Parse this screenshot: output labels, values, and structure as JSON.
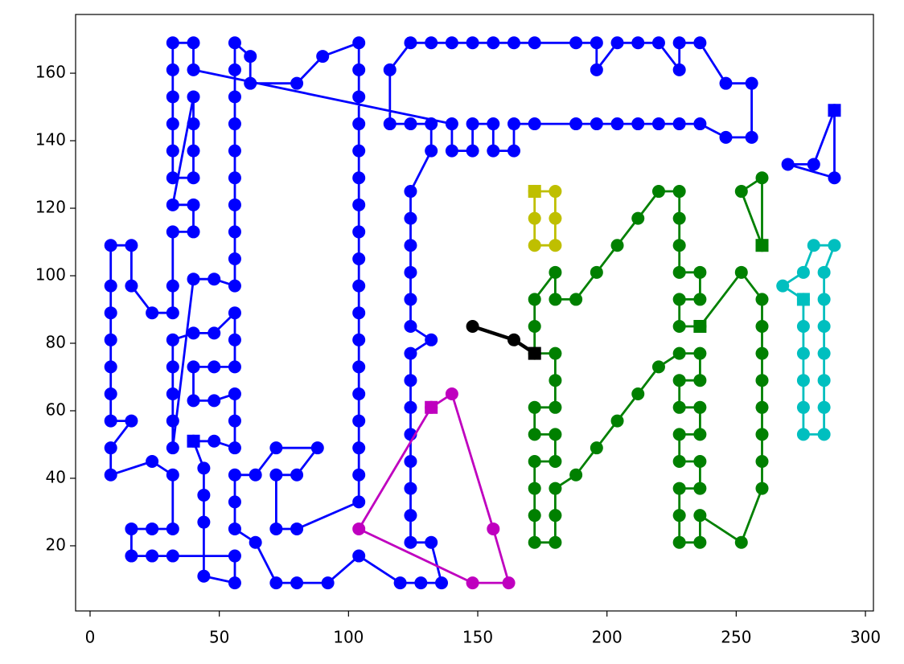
{
  "chart_data": {
    "type": "line",
    "xlim": [
      -5.6,
      303.1
    ],
    "ylim": [
      0.7,
      177.4
    ],
    "xticks": [
      0,
      50,
      100,
      150,
      200,
      250,
      300
    ],
    "yticks": [
      20,
      40,
      60,
      80,
      100,
      120,
      140,
      160
    ],
    "series": [
      {
        "color": "#0000ff",
        "x": [
          40,
          48,
          56,
          56,
          56,
          48,
          40,
          40,
          48,
          56,
          56,
          56,
          48,
          40,
          32,
          32,
          32,
          32,
          32,
          40,
          48,
          56,
          56,
          56,
          56,
          56,
          56,
          56,
          56,
          56,
          56,
          62,
          62,
          80,
          90,
          104,
          104,
          104,
          104,
          104,
          104,
          104,
          104,
          104,
          104,
          104,
          104,
          104,
          104,
          104,
          104,
          104,
          104,
          80,
          72,
          72,
          80,
          88,
          72,
          64,
          56,
          56,
          56,
          64,
          72,
          80,
          92,
          104,
          120,
          128,
          136,
          132,
          124,
          124,
          124,
          124,
          124,
          124,
          124,
          124,
          132,
          124,
          124,
          124,
          124,
          124,
          124,
          132,
          132,
          124,
          116,
          116,
          124,
          132,
          140,
          148,
          156,
          164,
          172,
          188,
          196,
          196,
          204,
          212,
          220,
          228,
          228,
          236,
          246,
          256,
          256,
          246,
          236,
          228,
          220,
          212,
          204,
          196,
          188,
          172,
          164,
          164,
          156,
          156,
          148,
          148,
          140,
          140,
          40,
          40,
          32,
          32,
          32,
          32,
          32,
          32,
          40,
          40,
          40,
          40,
          32,
          40,
          40,
          32,
          32,
          32,
          24,
          16,
          16,
          8,
          8,
          8,
          8,
          8,
          8,
          8,
          16,
          8,
          8,
          24,
          32,
          32,
          24,
          16,
          16,
          24,
          32,
          56,
          56,
          44,
          44,
          44,
          44,
          40
        ],
        "y": [
          51,
          51,
          49,
          57,
          65,
          63,
          63,
          73,
          73,
          73,
          81,
          89,
          83,
          83,
          81,
          73,
          65,
          57,
          49,
          99,
          99,
          97,
          105,
          113,
          121,
          129,
          137,
          145,
          153,
          161,
          169,
          165,
          157,
          157,
          165,
          169,
          161,
          153,
          145,
          137,
          129,
          121,
          113,
          105,
          97,
          89,
          81,
          73,
          65,
          57,
          49,
          41,
          33,
          25,
          25,
          41,
          41,
          49,
          49,
          41,
          41,
          33,
          25,
          21,
          9,
          9,
          9,
          17,
          9,
          9,
          9,
          21,
          21,
          29,
          37,
          45,
          53,
          61,
          69,
          77,
          81,
          85,
          93,
          101,
          109,
          117,
          125,
          137,
          145,
          145,
          145,
          161,
          169,
          169,
          169,
          169,
          169,
          169,
          169,
          169,
          169,
          161,
          169,
          169,
          169,
          161,
          169,
          169,
          157,
          157,
          141,
          141,
          145,
          145,
          145,
          145,
          145,
          145,
          145,
          145,
          145,
          137,
          137,
          145,
          145,
          137,
          137,
          145,
          161,
          169,
          169,
          161,
          153,
          145,
          137,
          129,
          129,
          137,
          145,
          153,
          121,
          121,
          113,
          113,
          97,
          89,
          89,
          97,
          109,
          109,
          97,
          89,
          81,
          73,
          65,
          57,
          57,
          49,
          41,
          45,
          41,
          25,
          25,
          25,
          17,
          17,
          17,
          17,
          9,
          11,
          27,
          35,
          43,
          51
        ]
      },
      {
        "color": "#0000ff",
        "x": [
          288,
          288,
          270,
          280,
          288
        ],
        "y": [
          149,
          129,
          133,
          133,
          149
        ]
      },
      {
        "color": "#008000",
        "x": [
          236,
          252,
          260,
          260,
          260,
          260,
          260,
          260,
          260,
          260,
          252,
          236,
          236,
          228,
          228,
          228,
          236,
          236,
          228,
          228,
          236,
          236,
          228,
          228,
          236,
          236,
          228,
          220,
          212,
          204,
          196,
          188,
          180,
          180,
          180,
          172,
          172,
          172,
          172,
          180,
          180,
          172,
          172,
          180,
          180,
          180,
          172,
          172,
          172,
          180,
          180,
          188,
          196,
          204,
          212,
          220,
          228,
          228,
          228,
          228,
          236,
          236,
          228,
          228,
          236
        ],
        "y": [
          85,
          101,
          93,
          85,
          77,
          69,
          61,
          53,
          45,
          37,
          21,
          29,
          21,
          21,
          29,
          37,
          37,
          45,
          45,
          53,
          53,
          61,
          61,
          69,
          69,
          77,
          77,
          73,
          65,
          57,
          49,
          41,
          37,
          29,
          21,
          21,
          29,
          37,
          45,
          45,
          53,
          53,
          61,
          61,
          69,
          77,
          77,
          85,
          93,
          101,
          93,
          93,
          101,
          109,
          117,
          125,
          125,
          117,
          109,
          101,
          101,
          93,
          93,
          85,
          85
        ]
      },
      {
        "color": "#008000",
        "x": [
          260,
          252,
          260,
          260
        ],
        "y": [
          109,
          125,
          129,
          109
        ]
      },
      {
        "color": "#bfbf00",
        "x": [
          172,
          180,
          180,
          180,
          172,
          172,
          172
        ],
        "y": [
          125,
          125,
          117,
          109,
          109,
          117,
          125
        ]
      },
      {
        "color": "#00bfbf",
        "x": [
          276,
          268,
          276,
          280,
          288,
          284,
          284,
          284,
          284,
          284,
          284,
          284,
          276,
          276,
          276,
          276,
          276,
          276
        ],
        "y": [
          93,
          97,
          101,
          109,
          109,
          101,
          93,
          85,
          77,
          69,
          61,
          53,
          53,
          61,
          69,
          77,
          85,
          93
        ]
      },
      {
        "color": "#bf00bf",
        "x": [
          132,
          104,
          148,
          162,
          156,
          140,
          132
        ],
        "y": [
          61,
          25,
          9,
          9,
          25,
          65,
          61
        ]
      },
      {
        "color": "#000000",
        "x": [
          172,
          164,
          148
        ],
        "y": [
          77,
          81,
          85
        ]
      }
    ]
  }
}
